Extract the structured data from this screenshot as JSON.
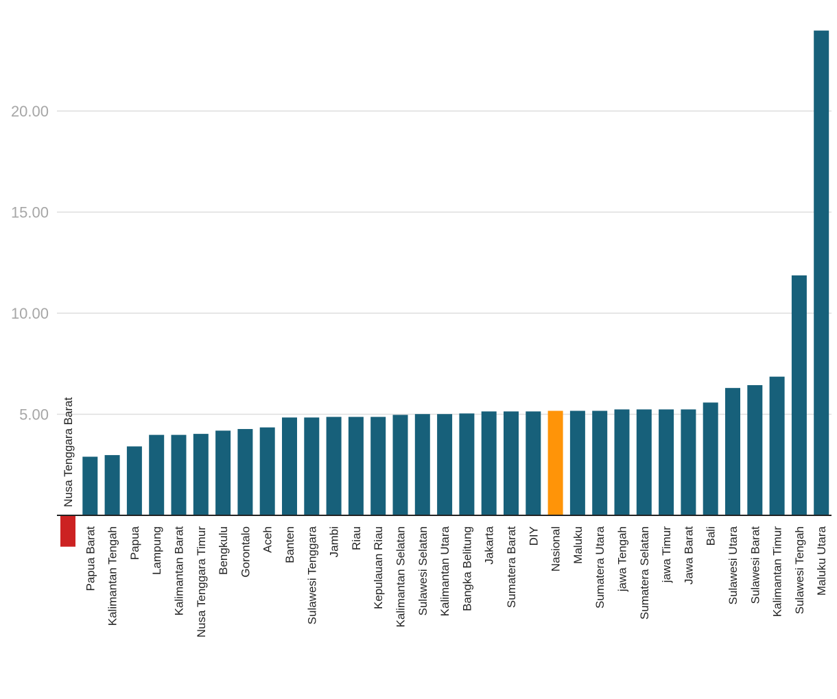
{
  "chart_data": {
    "type": "bar",
    "title": "",
    "xlabel": "",
    "ylabel": "",
    "ylim": [
      0,
      24
    ],
    "yticks": [
      5,
      10,
      15,
      20
    ],
    "ytick_labels": [
      "5.00",
      "10.00",
      "15.00",
      "20.00"
    ],
    "grid": true,
    "legend": "none",
    "colors": {
      "default": "#17607a",
      "negative": "#cc2222",
      "highlight": "#ff9408",
      "grid": "#dedede",
      "axis": "#222222",
      "tick": "#a6a6a6"
    },
    "highlight_category": "Nasional",
    "categories": [
      "Nusa Tenggara Barat",
      "Papua Barat",
      "Kalimantan Tengah",
      "Papua",
      "Lampung",
      "Kalimantan Barat",
      "Nusa Tenggara Timur",
      "Bengkulu",
      "Gorontalo",
      "Aceh",
      "Banten",
      "Sulawesi Tenggara",
      "Jambi",
      "Riau",
      "Kepulauan Riau",
      "Kalimantan Selatan",
      "Sulawesi Selatan",
      "Kalimantan Utara",
      "Bangka Belitung",
      "Jakarta",
      "Sumatera Barat",
      "DIY",
      "Nasional",
      "Maluku",
      "Sumatera Utara",
      "jawa Tengah",
      "Sumatera Selatan",
      "jawa Timur",
      "Jawa Barat",
      "Bali",
      "Sulawesi Utara",
      "Sulawesi Barat",
      "Kalimantan Timur",
      "Sulawesi Tengah",
      "Maluku Utara"
    ],
    "values": [
      -1.55,
      2.9,
      2.98,
      3.41,
      3.98,
      3.98,
      4.03,
      4.19,
      4.27,
      4.35,
      4.84,
      4.84,
      4.87,
      4.87,
      4.87,
      4.97,
      5.01,
      5.01,
      5.04,
      5.14,
      5.14,
      5.14,
      5.17,
      5.17,
      5.17,
      5.24,
      5.24,
      5.24,
      5.24,
      5.58,
      6.3,
      6.44,
      6.86,
      11.87,
      23.98
    ]
  }
}
